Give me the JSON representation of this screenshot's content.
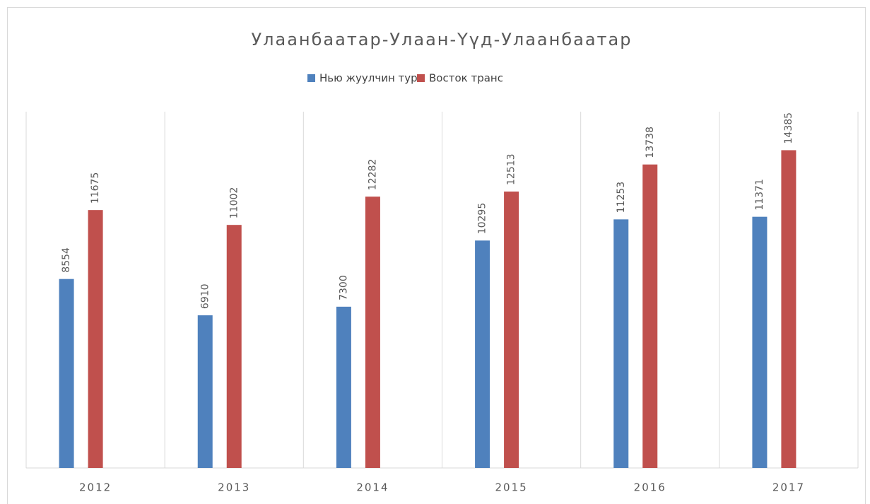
{
  "chart_data": {
    "type": "bar",
    "title": "Улаанбаатар-Улаан-Үүд-Улаанбаатар",
    "categories": [
      "2012",
      "2013",
      "2014",
      "2015",
      "2016",
      "2017"
    ],
    "series": [
      {
        "name": "Нью жуулчин турс",
        "color": "#4f81bd",
        "values": [
          8554,
          6910,
          7300,
          10295,
          11253,
          11371
        ]
      },
      {
        "name": "Восток транс",
        "color": "#c0504d",
        "values": [
          11675,
          11002,
          12282,
          12513,
          13738,
          14385
        ]
      }
    ],
    "ylim": [
      0,
      16000
    ],
    "legend": "top"
  }
}
